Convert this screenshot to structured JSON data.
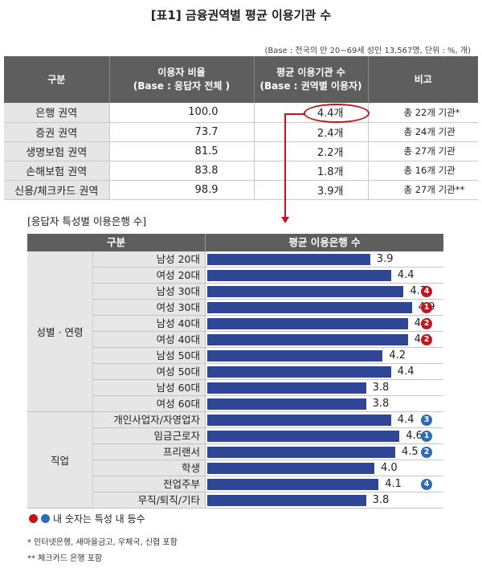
{
  "title": "[표1] 금융권역별 평균 이용기관 수",
  "base_note": "(Base : 전국의 만 20~69세 성인 13,567명, 단위 : %, 개)",
  "table1": {
    "headers": [
      "구분",
      "이용자 비율\n(Base : 응답자 전체 )",
      "평균 이용기관 수\n(Base : 권역별 이용자)",
      "비고"
    ],
    "rows": [
      {
        "category": "은행 권역",
        "ratio": "100.0",
        "avg": "4.4개",
        "note": "총 22개 기관*"
      },
      {
        "category": "증권 권역",
        "ratio": "73.7",
        "avg": "2.4개",
        "note": "총 24개 기관"
      },
      {
        "category": "생명보험 권역",
        "ratio": "81.5",
        "avg": "2.2개",
        "note": "총 27개 기관"
      },
      {
        "category": "손해보험 권역",
        "ratio": "83.8",
        "avg": "1.8개",
        "note": "총 16개 기관"
      },
      {
        "category": "신용/체크카드 권역",
        "ratio": "98.9",
        "avg": "3.9개",
        "note": "총 27개 기관**"
      }
    ]
  },
  "subtitle": "[응답자 특성별 이용은행 수]",
  "table2": {
    "header_left": "구분",
    "header_right": "평균 이용은행 수",
    "groups": [
      "성별 · 연령",
      "직업"
    ]
  },
  "chart_data": {
    "type": "bar",
    "orientation": "horizontal",
    "xlim": [
      0,
      5.5
    ],
    "categories": [
      "남성 20대",
      "여성 20대",
      "남성 30대",
      "여성 30대",
      "남성 40대",
      "여성 40대",
      "남성 50대",
      "여성 50대",
      "남성 60대",
      "여성 60대",
      "개인사업자/자영업자",
      "임금근로자",
      "프리랜서",
      "학생",
      "전업주부",
      "무직/퇴직/기타"
    ],
    "groups": [
      "성별 · 연령",
      "성별 · 연령",
      "성별 · 연령",
      "성별 · 연령",
      "성별 · 연령",
      "성별 · 연령",
      "성별 · 연령",
      "성별 · 연령",
      "성별 · 연령",
      "성별 · 연령",
      "직업",
      "직업",
      "직업",
      "직업",
      "직업",
      "직업"
    ],
    "values": [
      3.9,
      4.4,
      4.7,
      4.9,
      4.8,
      4.8,
      4.2,
      4.4,
      3.8,
      3.8,
      4.4,
      4.6,
      4.5,
      4.0,
      4.1,
      3.8
    ],
    "value_labels": [
      "3.9",
      "4.4",
      "4.7",
      "4.9",
      "4.8",
      "4.8",
      "4.2",
      "4.4",
      "3.8",
      "3.8",
      "4.4",
      "4.6",
      "4.5",
      "4.0",
      "4.1",
      "3.8"
    ],
    "ranks": [
      "",
      "",
      "4",
      "1",
      "2",
      "2",
      "",
      "",
      "",
      "",
      "3",
      "1",
      "2",
      "",
      "4",
      ""
    ],
    "rank_colors": [
      "",
      "",
      "red",
      "red",
      "red",
      "red",
      "",
      "",
      "",
      "",
      "blue",
      "blue",
      "blue",
      "",
      "blue",
      ""
    ],
    "bar_color": "#2f4694"
  },
  "colors": {
    "red": "#c3161c",
    "blue": "#2b6cb8",
    "header": "#5e5e5e",
    "cell": "#e6e6e6"
  },
  "legend_text": "내 숫자는 특성 내 등수",
  "footnotes": [
    "* 인터넷은행, 새마을금고, 우체국, 신협 포함",
    "** 체크카드 은행 포함"
  ]
}
